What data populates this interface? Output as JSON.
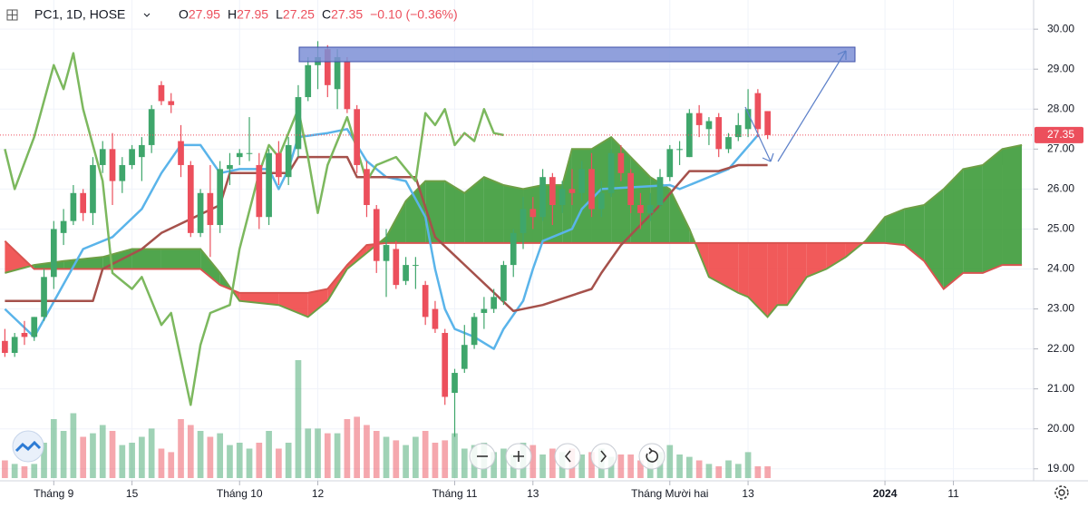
{
  "chart_data": {
    "type": "candlestick",
    "symbol": "PC1, 1D, HOSE",
    "header": [
      {
        "key": "O",
        "field": 0
      },
      {
        "key": "H",
        "field": 1
      },
      {
        "key": "L",
        "field": 2
      },
      {
        "key": "C",
        "field": 3
      }
    ],
    "change": "−0.10 (−0.36%)",
    "up_color": "#3fa66b",
    "down_color": "#ec4f5c",
    "grid": true,
    "xlim": [
      -0.5,
      105.2
    ],
    "ylim": [
      18.7,
      30.73
    ],
    "xticks": [
      {
        "value": 5,
        "label": "Tháng 9"
      },
      {
        "value": 13,
        "label": "15"
      },
      {
        "value": 24,
        "label": "Tháng 10"
      },
      {
        "value": 32,
        "label": "12"
      },
      {
        "value": 46,
        "label": "Tháng 11"
      },
      {
        "value": 54,
        "label": "13"
      },
      {
        "value": 68,
        "label": "Tháng Mười hai"
      },
      {
        "value": 76,
        "label": "13"
      },
      {
        "value": 90,
        "label": "2024"
      },
      {
        "value": 97,
        "label": "11"
      }
    ],
    "yticks": [
      {
        "value": 19,
        "label": "19.00"
      },
      {
        "value": 20,
        "label": "20.00"
      },
      {
        "value": 21,
        "label": "21.00"
      },
      {
        "value": 22,
        "label": "22.00"
      },
      {
        "value": 23,
        "label": "23.00"
      },
      {
        "value": 24,
        "label": "24.00"
      },
      {
        "value": 25,
        "label": "25.00"
      },
      {
        "value": 26,
        "label": "26.00"
      },
      {
        "value": 27,
        "label": "27.00"
      },
      {
        "value": 28,
        "label": "28.00"
      },
      {
        "value": 29,
        "label": "29.00"
      },
      {
        "value": 30,
        "label": "30.00"
      }
    ],
    "ohlc": [
      [
        22.2,
        22.5,
        21.8,
        21.9
      ],
      [
        21.9,
        22.4,
        21.8,
        22.3
      ],
      [
        22.4,
        22.7,
        22.1,
        22.3
      ],
      [
        22.3,
        22.8,
        22.2,
        22.8
      ],
      [
        22.8,
        24.0,
        22.7,
        23.8
      ],
      [
        23.8,
        25.2,
        23.5,
        25.0
      ],
      [
        24.9,
        25.5,
        24.6,
        25.2
      ],
      [
        25.2,
        26.1,
        25.1,
        25.9
      ],
      [
        25.9,
        26.0,
        25.2,
        25.4
      ],
      [
        25.4,
        26.8,
        25.1,
        26.6
      ],
      [
        26.6,
        27.2,
        26.4,
        27.0
      ],
      [
        27.0,
        27.4,
        25.6,
        26.2
      ],
      [
        26.2,
        26.8,
        25.9,
        26.6
      ],
      [
        26.6,
        27.1,
        26.5,
        27.0
      ],
      [
        26.8,
        27.3,
        26.2,
        27.1
      ],
      [
        27.1,
        28.1,
        26.9,
        28.0
      ],
      [
        28.6,
        28.7,
        28.1,
        28.2
      ],
      [
        28.2,
        28.4,
        27.9,
        28.1
      ],
      [
        27.2,
        27.6,
        26.3,
        26.6
      ],
      [
        26.6,
        26.7,
        24.8,
        24.9
      ],
      [
        24.9,
        26.0,
        24.8,
        25.9
      ],
      [
        25.9,
        26.6,
        24.3,
        25.1
      ],
      [
        25.1,
        26.7,
        24.9,
        26.5
      ],
      [
        26.5,
        26.9,
        26.1,
        26.6
      ],
      [
        26.8,
        27.0,
        26.6,
        26.9
      ],
      [
        26.9,
        27.8,
        26.7,
        26.9
      ],
      [
        26.6,
        26.9,
        25.0,
        25.3
      ],
      [
        25.3,
        27.0,
        25.1,
        26.9
      ],
      [
        26.9,
        27.2,
        26.1,
        26.3
      ],
      [
        26.3,
        27.3,
        26.1,
        27.1
      ],
      [
        27.0,
        28.6,
        26.8,
        28.3
      ],
      [
        28.3,
        29.3,
        28.2,
        29.1
      ],
      [
        29.1,
        29.7,
        28.5,
        29.3
      ],
      [
        29.5,
        29.6,
        28.3,
        28.6
      ],
      [
        28.5,
        29.5,
        28.0,
        29.3
      ],
      [
        29.2,
        29.3,
        27.9,
        28.0
      ],
      [
        28.0,
        28.1,
        26.4,
        26.6
      ],
      [
        26.5,
        26.7,
        25.3,
        25.6
      ],
      [
        25.5,
        25.6,
        23.9,
        24.2
      ],
      [
        24.2,
        25.0,
        23.3,
        24.6
      ],
      [
        24.5,
        24.7,
        23.5,
        23.6
      ],
      [
        23.7,
        24.3,
        23.6,
        24.1
      ],
      [
        24.1,
        24.3,
        23.5,
        24.1
      ],
      [
        23.6,
        23.7,
        22.6,
        22.8
      ],
      [
        23.0,
        23.2,
        22.4,
        22.5
      ],
      [
        22.4,
        22.5,
        20.6,
        20.8
      ],
      [
        20.9,
        21.5,
        19.8,
        21.4
      ],
      [
        21.5,
        22.6,
        21.4,
        22.1
      ],
      [
        22.1,
        22.9,
        22.0,
        22.8
      ],
      [
        22.9,
        23.3,
        22.5,
        23.0
      ],
      [
        23.0,
        23.5,
        22.9,
        23.3
      ],
      [
        23.2,
        24.2,
        23.1,
        24.1
      ],
      [
        24.1,
        25.0,
        23.8,
        24.9
      ],
      [
        24.9,
        25.8,
        24.5,
        25.5
      ],
      [
        25.5,
        25.8,
        25.0,
        25.3
      ],
      [
        25.3,
        26.5,
        25.2,
        26.3
      ],
      [
        26.3,
        26.4,
        25.1,
        25.6
      ],
      [
        25.6,
        26.2,
        25.4,
        26.0
      ],
      [
        26.0,
        26.5,
        25.6,
        25.9
      ],
      [
        25.9,
        26.7,
        25.7,
        26.5
      ],
      [
        26.5,
        26.9,
        25.3,
        25.5
      ],
      [
        25.5,
        26.2,
        25.3,
        25.9
      ],
      [
        25.9,
        27.0,
        25.8,
        26.9
      ],
      [
        26.9,
        27.1,
        26.2,
        26.4
      ],
      [
        26.4,
        26.5,
        25.4,
        25.6
      ],
      [
        25.6,
        25.9,
        25.0,
        25.4
      ],
      [
        25.4,
        25.9,
        25.2,
        25.6
      ],
      [
        25.6,
        26.5,
        25.5,
        26.3
      ],
      [
        26.3,
        27.1,
        26.2,
        27.0
      ],
      [
        27.0,
        27.2,
        26.6,
        27.0
      ],
      [
        26.8,
        28.0,
        26.8,
        27.9
      ],
      [
        27.9,
        28.1,
        27.3,
        27.6
      ],
      [
        27.5,
        27.8,
        27.1,
        27.7
      ],
      [
        27.8,
        27.9,
        26.8,
        27.0
      ],
      [
        27.0,
        27.4,
        26.9,
        27.3
      ],
      [
        27.3,
        27.9,
        27.2,
        27.6
      ],
      [
        27.5,
        28.5,
        27.3,
        28.0
      ],
      [
        28.4,
        28.5,
        27.3,
        27.5
      ],
      [
        27.95,
        27.95,
        27.25,
        27.35
      ]
    ],
    "volume": [
      15,
      12,
      10,
      12,
      30,
      50,
      40,
      55,
      35,
      38,
      45,
      40,
      28,
      30,
      35,
      42,
      25,
      22,
      50,
      45,
      40,
      35,
      38,
      28,
      30,
      25,
      30,
      40,
      25,
      30,
      100,
      42,
      42,
      38,
      38,
      50,
      52,
      45,
      40,
      35,
      32,
      28,
      35,
      40,
      30,
      32,
      38,
      25,
      28,
      30,
      22,
      25,
      20,
      30,
      28,
      20,
      25,
      22,
      25,
      20,
      22,
      25,
      18,
      20,
      20,
      15,
      18,
      22,
      28,
      20,
      18,
      15,
      12,
      10,
      15,
      12,
      22,
      10,
      10
    ],
    "volume_lim": [
      0,
      100
    ],
    "lines": [
      {
        "color": "#5ab4ea",
        "x": [
          0,
          3,
          8,
          11,
          14,
          16,
          18,
          20,
          22,
          24,
          27,
          28,
          29,
          30,
          33,
          35,
          37,
          39,
          41,
          43,
          44,
          45,
          46,
          48,
          50,
          51,
          53,
          54,
          55,
          58,
          59,
          61,
          68,
          69,
          74,
          77
        ],
        "values": [
          23.0,
          22.3,
          24.5,
          24.8,
          25.5,
          26.4,
          27.1,
          27.1,
          26.4,
          26.5,
          26.5,
          26.0,
          26.5,
          27.3,
          27.4,
          27.5,
          26.7,
          26.3,
          26.2,
          25.3,
          24.0,
          23.0,
          22.5,
          22.3,
          22.0,
          22.5,
          23.2,
          24.0,
          24.7,
          25.0,
          25.5,
          26.0,
          26.1,
          26.0,
          26.5,
          27.35
        ]
      },
      {
        "color": "#a5514b",
        "x": [
          0,
          9,
          10,
          14,
          16,
          22,
          23,
          29,
          30,
          35,
          36,
          42,
          44,
          52,
          55,
          60,
          61,
          63,
          67,
          70,
          73,
          75,
          78
        ],
        "values": [
          23.2,
          23.2,
          24.0,
          24.5,
          24.9,
          25.6,
          26.4,
          26.4,
          26.8,
          26.8,
          26.3,
          26.3,
          24.8,
          22.95,
          23.1,
          23.5,
          23.9,
          24.6,
          25.6,
          26.45,
          26.45,
          26.6,
          26.6
        ]
      },
      {
        "color": "#7cb85e",
        "x": [
          0,
          1,
          3,
          5,
          6,
          7,
          8,
          10,
          11,
          13,
          14,
          16,
          17,
          19,
          20,
          21,
          23,
          24,
          26,
          27,
          28,
          30,
          31,
          32,
          33,
          35,
          37,
          38,
          40,
          42,
          43,
          44,
          45,
          46,
          47,
          48,
          49,
          50,
          51
        ],
        "values": [
          27.0,
          26.0,
          27.3,
          29.1,
          28.5,
          29.4,
          28.0,
          26.2,
          23.9,
          23.5,
          23.8,
          22.6,
          22.9,
          20.6,
          22.1,
          22.9,
          23.1,
          24.5,
          26.4,
          27.1,
          26.8,
          28.0,
          26.8,
          25.4,
          26.6,
          27.8,
          26.2,
          26.6,
          26.8,
          26.2,
          27.9,
          27.6,
          28.0,
          27.1,
          27.4,
          27.2,
          28.0,
          27.4,
          27.35
        ]
      }
    ],
    "cloud": {
      "up_color": "#3d9b3a",
      "down_color": "#f04848",
      "a_color": "#6d9f45",
      "b_color": "#d85450",
      "x": [
        0,
        3,
        6,
        10,
        13,
        16,
        20,
        22,
        24,
        28,
        31,
        33,
        35,
        37,
        39,
        41,
        43,
        45,
        47,
        49,
        51,
        53,
        55,
        57,
        58,
        60,
        62,
        64,
        66,
        68,
        70,
        72,
        75,
        76,
        78,
        79,
        80,
        82,
        84,
        86,
        88,
        90,
        92,
        94,
        96,
        98,
        100,
        102,
        104
      ],
      "a": [
        23.9,
        24.1,
        24.2,
        24.3,
        24.5,
        24.5,
        24.5,
        23.9,
        23.2,
        23.1,
        22.8,
        23.2,
        24.0,
        24.4,
        24.8,
        25.7,
        26.2,
        26.2,
        25.9,
        26.3,
        26.1,
        26.0,
        26.1,
        26.1,
        27.0,
        27.0,
        27.3,
        26.8,
        26.3,
        26.0,
        25.0,
        23.8,
        23.4,
        23.3,
        22.8,
        23.1,
        23.1,
        23.8,
        24.0,
        24.3,
        24.7,
        25.3,
        25.5,
        25.6,
        26.0,
        26.5,
        26.6,
        27.0,
        27.1
      ],
      "b": [
        24.7,
        24.0,
        24.0,
        24.0,
        24.0,
        24.0,
        24.0,
        23.6,
        23.4,
        23.4,
        23.4,
        23.5,
        24.1,
        24.6,
        24.65,
        24.65,
        24.65,
        24.65,
        24.65,
        24.65,
        24.65,
        24.65,
        24.65,
        24.65,
        24.65,
        24.65,
        24.65,
        24.65,
        24.65,
        24.65,
        24.65,
        24.65,
        24.65,
        24.65,
        24.65,
        24.65,
        24.65,
        24.65,
        24.65,
        24.65,
        24.65,
        24.65,
        24.6,
        24.2,
        23.5,
        23.9,
        23.9,
        24.1,
        24.1
      ]
    }
  }
}
